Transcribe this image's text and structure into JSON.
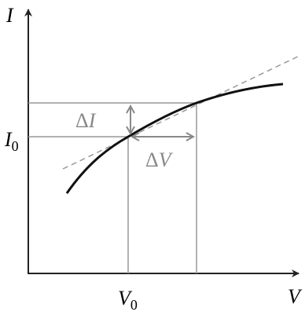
{
  "axes": {
    "y_label": "I",
    "x_label": "V"
  },
  "markers": {
    "i0": {
      "main": "I",
      "sub": "0"
    },
    "v0": {
      "main": "V",
      "sub": "0"
    }
  },
  "deltas": {
    "di": {
      "symbol": "Δ",
      "var": "I"
    },
    "dv": {
      "symbol": "Δ",
      "var": "V"
    }
  }
}
